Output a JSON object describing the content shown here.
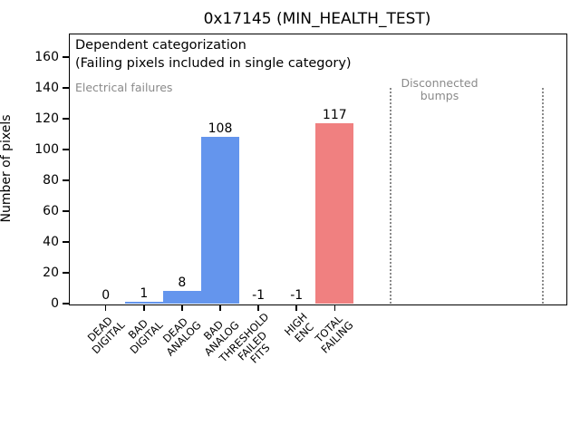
{
  "chart_data": {
    "type": "bar",
    "title": "0x17145 (MIN_HEALTH_TEST)",
    "ylabel": "Number of pixels",
    "xlabel": "",
    "categories": [
      "DEAD\nDIGITAL",
      "BAD\nDIGITAL",
      "DEAD\nANALOG",
      "BAD\nANALOG",
      "THRESHOLD\nFAILED\nFITS",
      "HIGH\nENC",
      "TOTAL\nFAILING"
    ],
    "values": [
      0,
      1,
      8,
      108,
      -1,
      -1,
      117
    ],
    "bar_labels": [
      "0",
      "1",
      "8",
      "108",
      "-1",
      "-1",
      "117"
    ],
    "bar_colors": [
      "#6495ED",
      "#6495ED",
      "#6495ED",
      "#6495ED",
      "#6495ED",
      "#6495ED",
      "#F08080"
    ],
    "yticks": [
      0,
      20,
      40,
      60,
      80,
      100,
      120,
      140,
      160
    ],
    "ylim": [
      0,
      175
    ],
    "grid": false,
    "legend": "none",
    "annotations": {
      "dependent": "Dependent categorization\n(Failing pixels included in single category)",
      "electrical": "Electrical failures",
      "disconnected": "Disconnected\nbumps"
    },
    "vlines": {
      "count": 2,
      "style": "dotted",
      "color": "#8a8a8a",
      "y_from": 0,
      "y_to": 140
    }
  }
}
